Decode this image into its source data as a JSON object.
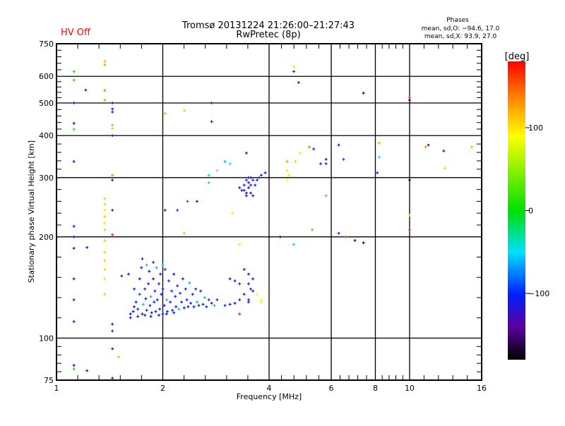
{
  "status": {
    "hv_label": "HV Off",
    "hv_color": "#ff0000"
  },
  "chart_data": {
    "type": "scatter",
    "title": "Tromsø 20131224 21:26:00–21:27:43",
    "subtitle": "RwPretec (8p)",
    "xlabel": "Frequency [MHz]",
    "ylabel": "Stationary phase Virtual Height [km]",
    "xscale": "log",
    "yscale": "log",
    "xlim": [
      1,
      16
    ],
    "ylim": [
      75,
      750
    ],
    "xticks": [
      1,
      2,
      4,
      6,
      8,
      10,
      16
    ],
    "xtick_labels": [
      "1",
      "2",
      "4",
      "6",
      "8",
      "10",
      "16"
    ],
    "x_gridlines": [
      2,
      4,
      6,
      8,
      10
    ],
    "yticks": [
      75,
      100,
      200,
      300,
      400,
      500,
      600,
      750
    ],
    "ytick_labels": [
      "75",
      "100",
      "200",
      "300",
      "400",
      "500",
      "600",
      "750"
    ],
    "y_gridlines": [
      100,
      200,
      300,
      400,
      500,
      600
    ],
    "grid": true,
    "stats": {
      "title": "Phases",
      "o_line": "mean, sd,O: −94.6, 17.0",
      "x_line": "mean, sd,X:  93.9, 27.0"
    },
    "colorbar": {
      "label": "[deg]",
      "range": [
        -180,
        180
      ],
      "ticks": [
        100,
        0,
        -100
      ],
      "tick_labels": [
        "100",
        "0",
        "−100"
      ],
      "colormap": "rainbow (black-purple-blue-cyan-green-yellow-red)",
      "placement": "right"
    },
    "point_fields": [
      "frequency_MHz",
      "height_km",
      "phase_deg"
    ],
    "points": [
      [
        1.12,
        620,
        10
      ],
      [
        1.12,
        585,
        15
      ],
      [
        1.12,
        500,
        -110
      ],
      [
        1.12,
        435,
        -105
      ],
      [
        1.12,
        418,
        20
      ],
      [
        1.12,
        335,
        -110
      ],
      [
        1.12,
        215,
        -120
      ],
      [
        1.12,
        200,
        -130
      ],
      [
        1.12,
        185,
        -140
      ],
      [
        1.12,
        150,
        -130
      ],
      [
        1.12,
        130,
        -135
      ],
      [
        1.12,
        112,
        -140
      ],
      [
        1.12,
        83,
        -120
      ],
      [
        1.12,
        81,
        10
      ],
      [
        1.21,
        546,
        -110
      ],
      [
        1.22,
        186,
        -120
      ],
      [
        1.22,
        80,
        -140
      ],
      [
        1.37,
        665,
        120
      ],
      [
        1.37,
        650,
        130
      ],
      [
        1.37,
        545,
        140
      ],
      [
        1.37,
        510,
        130
      ],
      [
        1.44,
        500,
        -140
      ],
      [
        1.44,
        480,
        -120
      ],
      [
        1.44,
        470,
        -100
      ],
      [
        1.44,
        430,
        40
      ],
      [
        1.44,
        420,
        60
      ],
      [
        1.44,
        400,
        -130
      ],
      [
        1.44,
        305,
        30
      ],
      [
        1.44,
        295,
        -140
      ],
      [
        1.44,
        240,
        -130
      ],
      [
        1.37,
        260,
        110
      ],
      [
        1.37,
        250,
        110
      ],
      [
        1.37,
        240,
        100
      ],
      [
        1.37,
        230,
        110
      ],
      [
        1.37,
        220,
        100
      ],
      [
        1.37,
        210,
        110
      ],
      [
        1.44,
        203,
        170
      ],
      [
        1.37,
        195,
        110
      ],
      [
        1.37,
        180,
        110
      ],
      [
        1.37,
        170,
        110
      ],
      [
        1.37,
        160,
        110
      ],
      [
        1.37,
        150,
        100
      ],
      [
        1.37,
        135,
        110
      ],
      [
        1.44,
        110,
        -120
      ],
      [
        1.44,
        105,
        -110
      ],
      [
        1.44,
        93,
        -130
      ],
      [
        1.44,
        76,
        -140
      ],
      [
        1.5,
        88,
        120
      ],
      [
        1.53,
        153,
        -130
      ],
      [
        2.03,
        465,
        120
      ],
      [
        2.3,
        475,
        60
      ],
      [
        2.75,
        500,
        -120
      ],
      [
        2.75,
        440,
        -130
      ],
      [
        2.03,
        240,
        -110
      ],
      [
        2.2,
        240,
        -90
      ],
      [
        2.35,
        255,
        -80
      ],
      [
        2.5,
        255,
        -110
      ],
      [
        2.7,
        290,
        -50
      ],
      [
        2.7,
        305,
        -40
      ],
      [
        2.85,
        315,
        120
      ],
      [
        3.0,
        335,
        -60
      ],
      [
        3.1,
        330,
        -50
      ],
      [
        3.15,
        235,
        100
      ],
      [
        3.3,
        190,
        100
      ],
      [
        2.3,
        205,
        120
      ],
      [
        3.45,
        355,
        -130
      ],
      [
        3.3,
        280,
        -100
      ],
      [
        3.35,
        275,
        -110
      ],
      [
        3.4,
        285,
        -100
      ],
      [
        3.45,
        270,
        -110
      ],
      [
        3.5,
        290,
        -100
      ],
      [
        3.55,
        300,
        -110
      ],
      [
        3.6,
        295,
        -100
      ],
      [
        3.65,
        285,
        -100
      ],
      [
        3.7,
        295,
        -110
      ],
      [
        3.75,
        300,
        -100
      ],
      [
        3.8,
        305,
        -100
      ],
      [
        3.9,
        310,
        -100
      ],
      [
        3.45,
        265,
        -100
      ],
      [
        3.5,
        280,
        -120
      ],
      [
        3.55,
        270,
        -100
      ],
      [
        3.6,
        265,
        -110
      ],
      [
        3.5,
        300,
        -110
      ],
      [
        3.45,
        295,
        -100
      ],
      [
        3.4,
        275,
        -120
      ],
      [
        3.55,
        285,
        -120
      ],
      [
        4.5,
        335,
        130
      ],
      [
        4.5,
        315,
        100
      ],
      [
        4.55,
        305,
        100
      ],
      [
        4.5,
        295,
        90
      ],
      [
        4.7,
        640,
        100
      ],
      [
        4.7,
        620,
        -140
      ],
      [
        4.85,
        575,
        -140
      ],
      [
        4.9,
        355,
        100
      ],
      [
        4.75,
        335,
        60
      ],
      [
        5.2,
        370,
        140
      ],
      [
        5.35,
        365,
        -100
      ],
      [
        5.6,
        330,
        -100
      ],
      [
        5.8,
        340,
        -120
      ],
      [
        5.8,
        330,
        -120
      ],
      [
        5.8,
        265,
        -40
      ],
      [
        5.3,
        210,
        140
      ],
      [
        4.3,
        200,
        -150
      ],
      [
        4.7,
        190,
        -40
      ],
      [
        6.3,
        375,
        -100
      ],
      [
        6.5,
        340,
        -90
      ],
      [
        6.3,
        205,
        -120
      ],
      [
        6.6,
        200,
        160
      ],
      [
        7.0,
        195,
        -160
      ],
      [
        7.4,
        192,
        -160
      ],
      [
        7.4,
        535,
        -150
      ],
      [
        8.2,
        380,
        120
      ],
      [
        8.2,
        345,
        -50
      ],
      [
        8.1,
        310,
        -120
      ],
      [
        10,
        520,
        160
      ],
      [
        10,
        510,
        -160
      ],
      [
        10,
        295,
        -170
      ],
      [
        10,
        232,
        110
      ],
      [
        10,
        210,
        170
      ],
      [
        11.3,
        375,
        -120
      ],
      [
        11.1,
        370,
        130
      ],
      [
        12.6,
        320,
        110
      ],
      [
        12.5,
        360,
        -130
      ],
      [
        15,
        370,
        120
      ],
      [
        3.1,
        150,
        -100
      ],
      [
        3.2,
        148,
        -110
      ],
      [
        3.3,
        145,
        -130
      ],
      [
        3.4,
        160,
        -130
      ],
      [
        3.5,
        155,
        -130
      ],
      [
        3.5,
        145,
        -130
      ],
      [
        3.55,
        140,
        -130
      ],
      [
        3.6,
        150,
        -100
      ],
      [
        3.5,
        130,
        -120
      ],
      [
        3.6,
        138,
        -110
      ],
      [
        3.4,
        135,
        -130
      ],
      [
        3.7,
        135,
        90
      ],
      [
        3.8,
        130,
        90
      ],
      [
        3.8,
        128,
        100
      ],
      [
        3.3,
        118,
        170
      ],
      [
        3.1,
        126,
        -120
      ],
      [
        3.0,
        125,
        -100
      ],
      [
        3.2,
        127,
        -110
      ],
      [
        3.3,
        130,
        -130
      ],
      [
        3.5,
        128,
        -130
      ],
      [
        1.62,
        118,
        -105
      ],
      [
        1.65,
        120,
        -100
      ],
      [
        1.66,
        124,
        -110
      ],
      [
        1.68,
        128,
        -100
      ],
      [
        1.7,
        122,
        -105
      ],
      [
        1.72,
        135,
        -90
      ],
      [
        1.72,
        150,
        -130
      ],
      [
        1.74,
        162,
        -110
      ],
      [
        1.75,
        118,
        -100
      ],
      [
        1.76,
        126,
        -60
      ],
      [
        1.78,
        140,
        -100
      ],
      [
        1.79,
        131,
        -105
      ],
      [
        1.8,
        121,
        -100
      ],
      [
        1.82,
        145,
        -110
      ],
      [
        1.83,
        158,
        -100
      ],
      [
        1.84,
        125,
        -105
      ],
      [
        1.85,
        133,
        -60
      ],
      [
        1.86,
        119,
        -100
      ],
      [
        1.88,
        150,
        -110
      ],
      [
        1.89,
        128,
        -100
      ],
      [
        1.9,
        138,
        -105
      ],
      [
        1.91,
        120,
        -100
      ],
      [
        1.92,
        162,
        -60
      ],
      [
        1.93,
        130,
        -110
      ],
      [
        1.95,
        145,
        -100
      ],
      [
        1.96,
        122,
        -105
      ],
      [
        1.97,
        155,
        -130
      ],
      [
        1.98,
        135,
        -100
      ],
      [
        2.0,
        118,
        -100
      ],
      [
        2.0,
        140,
        -110
      ],
      [
        2.02,
        125,
        -105
      ],
      [
        2.03,
        160,
        -100
      ],
      [
        2.05,
        130,
        -60
      ],
      [
        2.06,
        120,
        -100
      ],
      [
        2.08,
        148,
        -110
      ],
      [
        2.1,
        128,
        -105
      ],
      [
        2.12,
        138,
        -100
      ],
      [
        2.13,
        121,
        -100
      ],
      [
        2.15,
        155,
        -110
      ],
      [
        2.17,
        133,
        -100
      ],
      [
        2.18,
        124,
        -105
      ],
      [
        2.2,
        143,
        -100
      ],
      [
        2.22,
        122,
        -60
      ],
      [
        2.24,
        136,
        -100
      ],
      [
        2.26,
        128,
        -110
      ],
      [
        2.28,
        150,
        -100
      ],
      [
        2.3,
        123,
        -105
      ],
      [
        2.32,
        140,
        -100
      ],
      [
        2.34,
        130,
        -110
      ],
      [
        2.36,
        124,
        -100
      ],
      [
        2.38,
        146,
        -60
      ],
      [
        2.4,
        127,
        -100
      ],
      [
        2.43,
        135,
        -105
      ],
      [
        2.45,
        124,
        -100
      ],
      [
        2.48,
        140,
        -110
      ],
      [
        2.5,
        128,
        -60
      ],
      [
        2.53,
        125,
        -100
      ],
      [
        2.56,
        138,
        -105
      ],
      [
        2.6,
        126,
        -100
      ],
      [
        2.63,
        132,
        -60
      ],
      [
        2.66,
        124,
        -100
      ],
      [
        2.7,
        130,
        -110
      ],
      [
        2.75,
        127,
        -100
      ],
      [
        2.8,
        125,
        -60
      ],
      [
        2.85,
        130,
        -100
      ],
      [
        1.62,
        115,
        -110
      ],
      [
        1.7,
        116,
        -100
      ],
      [
        1.78,
        117,
        -110
      ],
      [
        1.85,
        116,
        -100
      ],
      [
        1.95,
        117,
        -105
      ],
      [
        2.05,
        118,
        -100
      ],
      [
        2.15,
        119,
        -105
      ],
      [
        1.66,
        140,
        -100
      ],
      [
        1.6,
        155,
        -130
      ],
      [
        1.8,
        165,
        -60
      ],
      [
        1.88,
        168,
        -100
      ],
      [
        2.0,
        165,
        -60
      ],
      [
        1.75,
        172,
        -110
      ]
    ]
  }
}
